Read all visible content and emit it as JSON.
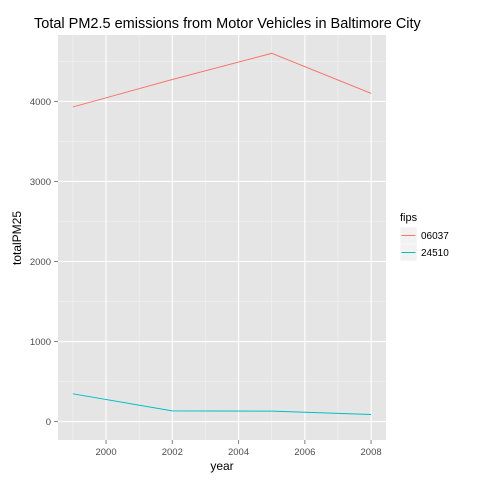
{
  "chart_data": {
    "type": "line",
    "title": "Total PM2.5 emissions from Motor Vehicles in Baltimore City",
    "xlabel": "year",
    "ylabel": "totalPM25",
    "x": [
      1999,
      2002,
      2005,
      2008
    ],
    "xlim": [
      1998.55,
      2008.45
    ],
    "ylim": [
      -230,
      4830
    ],
    "x_ticks": [
      2000,
      2002,
      2004,
      2006,
      2008
    ],
    "y_ticks": [
      0,
      1000,
      2000,
      3000,
      4000
    ],
    "grid": true,
    "legend": {
      "title": "fips",
      "position": "right"
    },
    "series": [
      {
        "name": "06037",
        "color": "#f8766d",
        "values": [
          3931,
          4274,
          4601,
          4101
        ]
      },
      {
        "name": "24510",
        "color": "#00bfc4",
        "values": [
          347,
          134,
          131,
          88
        ]
      }
    ]
  },
  "colors": {
    "panel_background": "#e5e5e5",
    "grid_major": "#ffffff",
    "grid_minor": "#f2f2f2",
    "tick": "#7f7f7f"
  }
}
